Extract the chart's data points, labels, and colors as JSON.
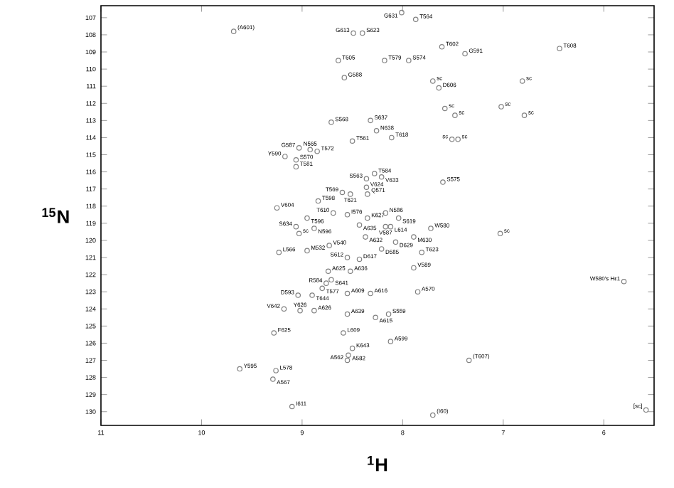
{
  "chart_data": {
    "type": "scatter",
    "xlabel": "$^{1}$H",
    "ylabel": "$^{15}$N",
    "xlim": [
      11,
      5.5
    ],
    "ylim": [
      130.8,
      106.3
    ],
    "xticks": [
      11,
      10,
      9,
      8,
      7,
      6
    ],
    "yticks": [
      107,
      108,
      109,
      110,
      111,
      112,
      113,
      114,
      115,
      116,
      117,
      118,
      119,
      120,
      121,
      122,
      123,
      124,
      125,
      126,
      127,
      128,
      129,
      130
    ],
    "marker": "circle",
    "color": "#808080",
    "x": [
      9.68,
      8.01,
      7.87,
      8.49,
      8.4,
      8.64,
      8.18,
      7.94,
      7.61,
      7.38,
      6.44,
      8.58,
      7.7,
      7.64,
      6.81,
      7.58,
      7.48,
      7.02,
      6.79,
      8.71,
      8.32,
      8.26,
      8.5,
      8.11,
      7.51,
      7.45,
      9.03,
      8.92,
      8.85,
      9.17,
      9.06,
      9.06,
      8.28,
      8.36,
      8.21,
      8.36,
      8.35,
      7.6,
      8.6,
      8.84,
      8.52,
      9.25,
      8.69,
      8.95,
      9.06,
      9.03,
      8.88,
      8.55,
      8.17,
      8.35,
      8.04,
      8.43,
      8.17,
      8.12,
      7.72,
      7.03,
      8.37,
      7.89,
      8.07,
      7.81,
      8.73,
      9.23,
      8.95,
      8.55,
      8.43,
      8.21,
      8.74,
      8.52,
      7.89,
      8.71,
      8.76,
      8.8,
      8.9,
      9.04,
      8.55,
      8.32,
      7.85,
      9.18,
      9.02,
      8.88,
      8.55,
      8.27,
      8.14,
      8.59,
      9.28,
      8.5,
      8.12,
      8.54,
      8.55,
      7.34,
      9.62,
      9.26,
      9.29,
      9.1,
      7.7,
      5.58,
      5.8
    ],
    "values": [
      107.8,
      106.7,
      107.1,
      107.9,
      107.9,
      109.5,
      109.5,
      109.5,
      108.7,
      109.1,
      108.8,
      110.5,
      110.7,
      111.1,
      110.7,
      112.3,
      112.7,
      112.2,
      112.7,
      113.1,
      113.0,
      113.6,
      114.2,
      114.0,
      114.1,
      114.1,
      114.6,
      114.7,
      114.8,
      115.1,
      115.3,
      115.7,
      116.1,
      116.4,
      116.3,
      116.9,
      117.3,
      116.6,
      117.2,
      117.7,
      117.3,
      118.1,
      118.4,
      118.7,
      119.2,
      119.6,
      119.3,
      118.5,
      118.4,
      118.7,
      118.7,
      119.1,
      119.2,
      119.2,
      119.3,
      119.6,
      119.8,
      119.8,
      120.1,
      120.7,
      120.3,
      120.7,
      120.6,
      121.0,
      121.1,
      120.5,
      121.8,
      121.8,
      121.6,
      122.3,
      122.5,
      122.8,
      123.2,
      123.2,
      123.1,
      123.1,
      123.0,
      124.0,
      124.1,
      124.1,
      124.3,
      124.5,
      124.3,
      125.4,
      125.4,
      126.3,
      125.9,
      126.7,
      127.0,
      127.0,
      127.5,
      127.6,
      128.1,
      129.7,
      130.2,
      129.9,
      122.4
    ],
    "value_labels": [
      "(A601)",
      "G631",
      "T564",
      "G613",
      "S623",
      "T605",
      "T579",
      "S574",
      "T602",
      "G591",
      "T608",
      "G588",
      "sc",
      "D606",
      "sc",
      "sc",
      "sc",
      "sc",
      "sc",
      "S568",
      "S637",
      "N638",
      "T561",
      "T618",
      "sc",
      "sc",
      "G587",
      "N565",
      "T572",
      "Y590",
      "S570",
      "T581",
      "T584",
      "S563",
      "V633",
      "V624",
      "Q571",
      "S575",
      "T569",
      "T598",
      "T621",
      "V604",
      "T610",
      "T596",
      "S634",
      "sc",
      "N596",
      "I576",
      "N586",
      "K627",
      "S619",
      "A635",
      "V587",
      "L614",
      "W580",
      "sc",
      "A632",
      "M630",
      "D629",
      "T623",
      "V540",
      "L566",
      "M532",
      "S612",
      "D617",
      "D585",
      "A625",
      "A636",
      "V589",
      "S641",
      "R584",
      "T577",
      "T644",
      "D593",
      "A609",
      "A616",
      "A570",
      "V642",
      "Y626",
      "A626",
      "A639",
      "A615",
      "S559",
      "L609",
      "F625",
      "K643",
      "A599",
      "A582",
      "A562",
      "(T607)",
      "Y595",
      "L578",
      "A567",
      "I611",
      "(I60)",
      "[sc]",
      "W580's Hε1"
    ]
  }
}
